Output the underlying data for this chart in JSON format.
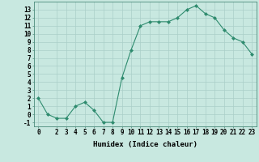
{
  "x": [
    0,
    1,
    2,
    3,
    4,
    5,
    6,
    7,
    8,
    9,
    10,
    11,
    12,
    13,
    14,
    15,
    16,
    17,
    18,
    19,
    20,
    21,
    22,
    23
  ],
  "y": [
    2,
    0,
    -0.5,
    -0.5,
    1,
    1.5,
    0.5,
    -1,
    -1,
    4.5,
    8,
    11,
    11.5,
    11.5,
    11.5,
    12,
    13,
    13.5,
    12.5,
    12,
    10.5,
    9.5,
    9,
    7.5
  ],
  "line_color": "#2e8b6e",
  "marker": "D",
  "marker_size": 2.0,
  "bg_color": "#c8e8e0",
  "grid_color": "#aacfc8",
  "xlabel": "Humidex (Indice chaleur)",
  "xlabel_fontsize": 6.5,
  "tick_fontsize": 5.5,
  "ylim": [
    -1.5,
    14
  ],
  "xlim": [
    -0.5,
    23.5
  ],
  "yticks": [
    -1,
    0,
    1,
    2,
    3,
    4,
    5,
    6,
    7,
    8,
    9,
    10,
    11,
    12,
    13
  ],
  "xticks": [
    0,
    2,
    3,
    4,
    5,
    6,
    7,
    8,
    9,
    10,
    11,
    12,
    13,
    14,
    15,
    16,
    17,
    18,
    19,
    20,
    21,
    22,
    23
  ]
}
